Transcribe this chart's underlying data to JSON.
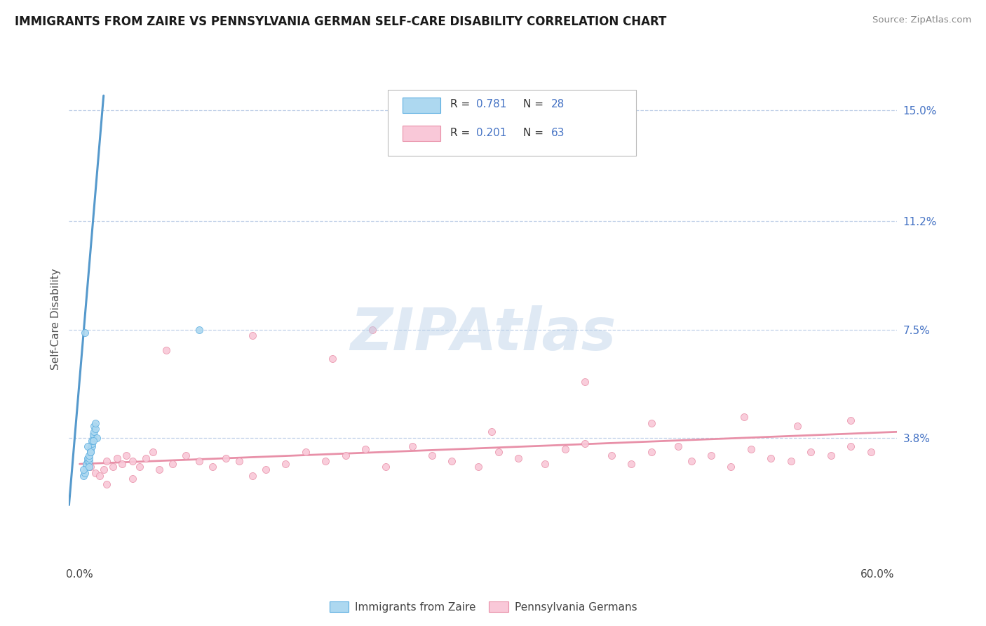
{
  "title": "IMMIGRANTS FROM ZAIRE VS PENNSYLVANIA GERMAN SELF-CARE DISABILITY CORRELATION CHART",
  "source": "Source: ZipAtlas.com",
  "ylabel": "Self-Care Disability",
  "R1": 0.781,
  "N1": 28,
  "R2": 0.201,
  "N2": 63,
  "legend_label1": "Immigrants from Zaire",
  "legend_label2": "Pennsylvania Germans",
  "color1_fill": "#add8f0",
  "color1_edge": "#5baee0",
  "color1_line": "#5599cc",
  "color2_fill": "#f9c8d8",
  "color2_edge": "#e890a8",
  "color2_line": "#e890a8",
  "tick_color": "#4472c4",
  "grid_color": "#c0d0e8",
  "ytick_vals": [
    0.038,
    0.075,
    0.112,
    0.15
  ],
  "ytick_labels": [
    "3.8%",
    "7.5%",
    "11.2%",
    "15.0%"
  ],
  "xlim": [
    -0.008,
    0.615
  ],
  "ylim": [
    -0.005,
    0.162
  ],
  "blue_scatter_x": [
    0.003,
    0.004,
    0.005,
    0.005,
    0.006,
    0.006,
    0.007,
    0.007,
    0.007,
    0.008,
    0.008,
    0.009,
    0.009,
    0.009,
    0.01,
    0.01,
    0.011,
    0.011,
    0.012,
    0.012,
    0.013,
    0.004,
    0.006,
    0.008,
    0.01,
    0.003,
    0.007,
    0.09
  ],
  "blue_scatter_y": [
    0.025,
    0.026,
    0.028,
    0.029,
    0.03,
    0.031,
    0.03,
    0.031,
    0.032,
    0.033,
    0.034,
    0.035,
    0.036,
    0.037,
    0.038,
    0.039,
    0.04,
    0.042,
    0.041,
    0.043,
    0.038,
    0.074,
    0.035,
    0.033,
    0.037,
    0.027,
    0.028,
    0.075
  ],
  "blue_line_x": [
    -0.008,
    0.018
  ],
  "blue_line_y": [
    0.015,
    0.155
  ],
  "pink_line_x": [
    0.0,
    0.615
  ],
  "pink_line_y": [
    0.029,
    0.04
  ],
  "pink_scatter_x": [
    0.008,
    0.012,
    0.015,
    0.018,
    0.02,
    0.025,
    0.028,
    0.032,
    0.035,
    0.04,
    0.045,
    0.05,
    0.055,
    0.06,
    0.07,
    0.08,
    0.09,
    0.1,
    0.11,
    0.12,
    0.13,
    0.14,
    0.155,
    0.17,
    0.185,
    0.2,
    0.215,
    0.23,
    0.25,
    0.265,
    0.28,
    0.3,
    0.315,
    0.33,
    0.35,
    0.365,
    0.38,
    0.4,
    0.415,
    0.43,
    0.45,
    0.46,
    0.475,
    0.49,
    0.505,
    0.52,
    0.535,
    0.55,
    0.565,
    0.58,
    0.595,
    0.02,
    0.04,
    0.065,
    0.13,
    0.19,
    0.31,
    0.38,
    0.43,
    0.5,
    0.54,
    0.58,
    0.22
  ],
  "pink_scatter_y": [
    0.028,
    0.026,
    0.025,
    0.027,
    0.03,
    0.028,
    0.031,
    0.029,
    0.032,
    0.03,
    0.028,
    0.031,
    0.033,
    0.027,
    0.029,
    0.032,
    0.03,
    0.028,
    0.031,
    0.03,
    0.025,
    0.027,
    0.029,
    0.033,
    0.03,
    0.032,
    0.034,
    0.028,
    0.035,
    0.032,
    0.03,
    0.028,
    0.033,
    0.031,
    0.029,
    0.034,
    0.036,
    0.032,
    0.029,
    0.033,
    0.035,
    0.03,
    0.032,
    0.028,
    0.034,
    0.031,
    0.03,
    0.033,
    0.032,
    0.035,
    0.033,
    0.022,
    0.024,
    0.068,
    0.073,
    0.065,
    0.04,
    0.057,
    0.043,
    0.045,
    0.042,
    0.044,
    0.075
  ]
}
